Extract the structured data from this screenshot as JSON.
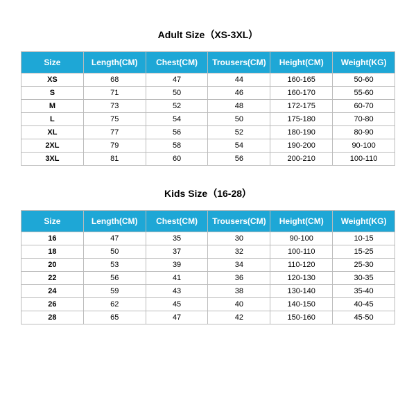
{
  "adult": {
    "title": "Adult Size（XS-3XL）",
    "title_fontsize": 14,
    "header_bg": "#1ea7d6",
    "header_textcolor": "#ffffff",
    "header_fontsize": 12,
    "row_fontsize": 11,
    "border_color": "#bbbbbb",
    "columns": [
      "Size",
      "Length(CM)",
      "Chest(CM)",
      "Trousers(CM)",
      "Height(CM)",
      "Weight(KG)"
    ],
    "rows": [
      [
        "XS",
        "68",
        "47",
        "44",
        "160-165",
        "50-60"
      ],
      [
        "S",
        "71",
        "50",
        "46",
        "160-170",
        "55-60"
      ],
      [
        "M",
        "73",
        "52",
        "48",
        "172-175",
        "60-70"
      ],
      [
        "L",
        "75",
        "54",
        "50",
        "175-180",
        "70-80"
      ],
      [
        "XL",
        "77",
        "56",
        "52",
        "180-190",
        "80-90"
      ],
      [
        "2XL",
        "79",
        "58",
        "54",
        "190-200",
        "90-100"
      ],
      [
        "3XL",
        "81",
        "60",
        "56",
        "200-210",
        "100-110"
      ]
    ]
  },
  "kids": {
    "title": "Kids Size（16-28）",
    "title_fontsize": 14,
    "header_bg": "#1ea7d6",
    "header_textcolor": "#ffffff",
    "header_fontsize": 12,
    "row_fontsize": 11,
    "border_color": "#bbbbbb",
    "columns": [
      "Size",
      "Length(CM)",
      "Chest(CM)",
      "Trousers(CM)",
      "Height(CM)",
      "Weight(KG)"
    ],
    "rows": [
      [
        "16",
        "47",
        "35",
        "30",
        "90-100",
        "10-15"
      ],
      [
        "18",
        "50",
        "37",
        "32",
        "100-110",
        "15-25"
      ],
      [
        "20",
        "53",
        "39",
        "34",
        "110-120",
        "25-30"
      ],
      [
        "22",
        "56",
        "41",
        "36",
        "120-130",
        "30-35"
      ],
      [
        "24",
        "59",
        "43",
        "38",
        "130-140",
        "35-40"
      ],
      [
        "26",
        "62",
        "45",
        "40",
        "140-150",
        "40-45"
      ],
      [
        "28",
        "65",
        "47",
        "42",
        "150-160",
        "45-50"
      ]
    ]
  }
}
